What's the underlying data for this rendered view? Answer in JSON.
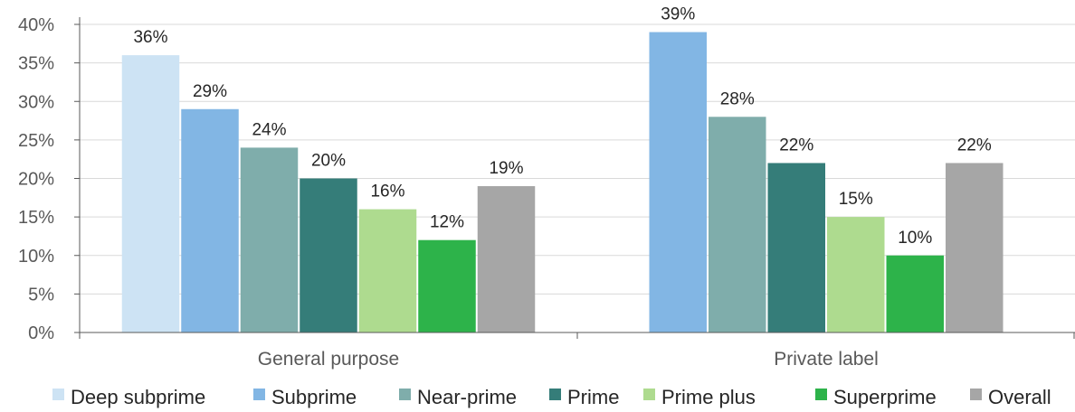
{
  "chart_data": {
    "type": "bar",
    "categories": [
      "General purpose",
      "Private label"
    ],
    "y_ticks": [
      "0%",
      "5%",
      "10%",
      "15%",
      "20%",
      "25%",
      "30%",
      "35%",
      "40%"
    ],
    "ylim": [
      0,
      40
    ],
    "grid": true,
    "legend_position": "bottom",
    "series": [
      {
        "name": "Deep subprime",
        "color": "#cde3f4",
        "values": [
          36,
          null
        ],
        "labels": [
          "36%",
          ""
        ]
      },
      {
        "name": "Subprime",
        "color": "#82b6e4",
        "values": [
          29,
          39
        ],
        "labels": [
          "29%",
          "39%"
        ]
      },
      {
        "name": "Near-prime",
        "color": "#7fadab",
        "values": [
          24,
          28
        ],
        "labels": [
          "24%",
          "28%"
        ]
      },
      {
        "name": "Prime",
        "color": "#357d79",
        "values": [
          20,
          22
        ],
        "labels": [
          "20%",
          "22%"
        ]
      },
      {
        "name": "Prime plus",
        "color": "#aedb8f",
        "values": [
          16,
          15
        ],
        "labels": [
          "16%",
          "15%"
        ]
      },
      {
        "name": "Superprime",
        "color": "#2db34a",
        "values": [
          12,
          10
        ],
        "labels": [
          "12%",
          "10%"
        ]
      },
      {
        "name": "Overall",
        "color": "#a6a6a6",
        "values": [
          19,
          22
        ],
        "labels": [
          "19%",
          "22%"
        ]
      }
    ]
  }
}
